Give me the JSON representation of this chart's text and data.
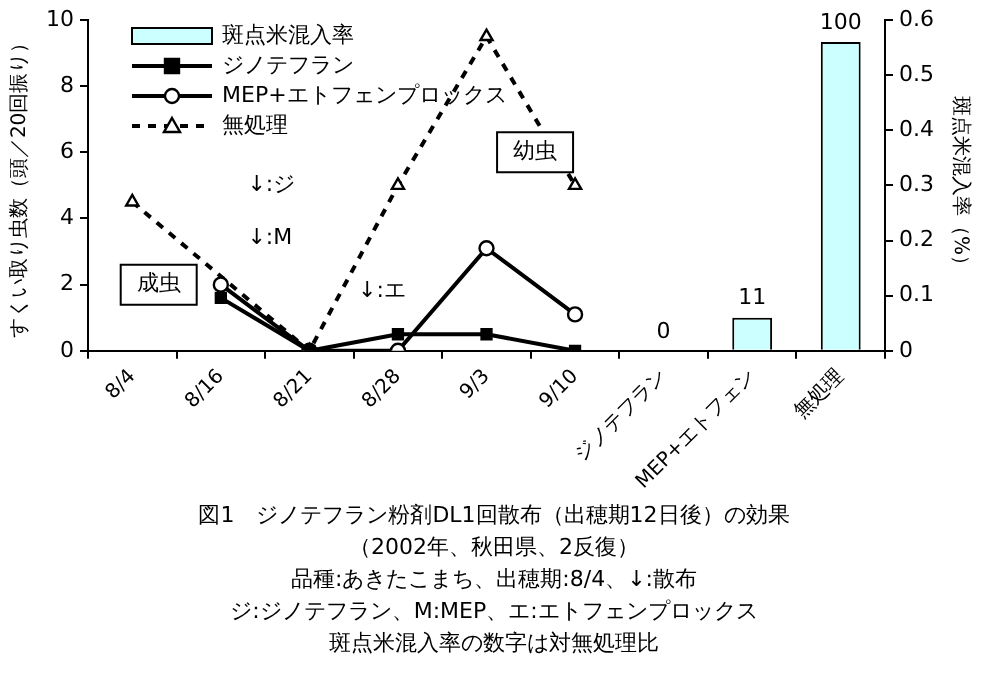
{
  "chart_data": {
    "type": "line",
    "title": "図1　ジノテフラン粉剤DL1回散布（出穂期12日後）の効果",
    "subtitle": "（2002年、秋田県、2反復）",
    "ylabel": "すくい取り虫数（頭／20回振り）",
    "y2label": "斑点米混入率（%）",
    "categories": [
      "8/4",
      "8/16",
      "8/21",
      "8/28",
      "9/3",
      "9/10",
      "ジノテフラン",
      "MEP+エトフェン",
      "無処理"
    ],
    "series": [
      {
        "name": "斑点米混入率",
        "type": "bar",
        "axis": "y2",
        "color": "#ccffff",
        "values": [
          null,
          null,
          null,
          null,
          null,
          null,
          0,
          0.06,
          0.56
        ]
      },
      {
        "name": "ジノテフラン",
        "color": "#000000",
        "marker": "square",
        "line_style": "solid",
        "values": [
          null,
          1.6,
          0,
          0.5,
          0.5,
          0,
          null,
          null,
          null
        ]
      },
      {
        "name": "MEP+エトフェンプロックス",
        "color": "#000000",
        "marker": "circle",
        "line_style": "solid",
        "values": [
          null,
          2.0,
          0,
          0,
          3.1,
          1.1,
          null,
          null,
          null
        ]
      },
      {
        "name": "無処理",
        "color": "#000000",
        "marker": "triangle",
        "line_style": "dashed",
        "values": [
          4.5,
          null,
          0,
          5.0,
          9.5,
          5.0,
          null,
          null,
          null
        ]
      }
    ],
    "ylim": [
      0,
      10
    ],
    "yticks": [
      0,
      2,
      4,
      6,
      8,
      10
    ],
    "y2lim": [
      0,
      0.6
    ],
    "y2ticks": [
      0,
      0.1,
      0.2,
      0.3,
      0.4,
      0.5,
      0.6
    ],
    "grid": false,
    "legend": "top left",
    "annotations": [
      "↓:ジ",
      "↓:M",
      "↓:エ",
      "成虫",
      "幼虫",
      "0",
      "11",
      "100",
      "品種:あきたこまち、出穂期:8/4、↓:散布",
      "ジ:ジノテフラン、M:MEP、エ:エトフェンプロックス",
      "斑点米混入率の数字は対無処理比"
    ]
  }
}
